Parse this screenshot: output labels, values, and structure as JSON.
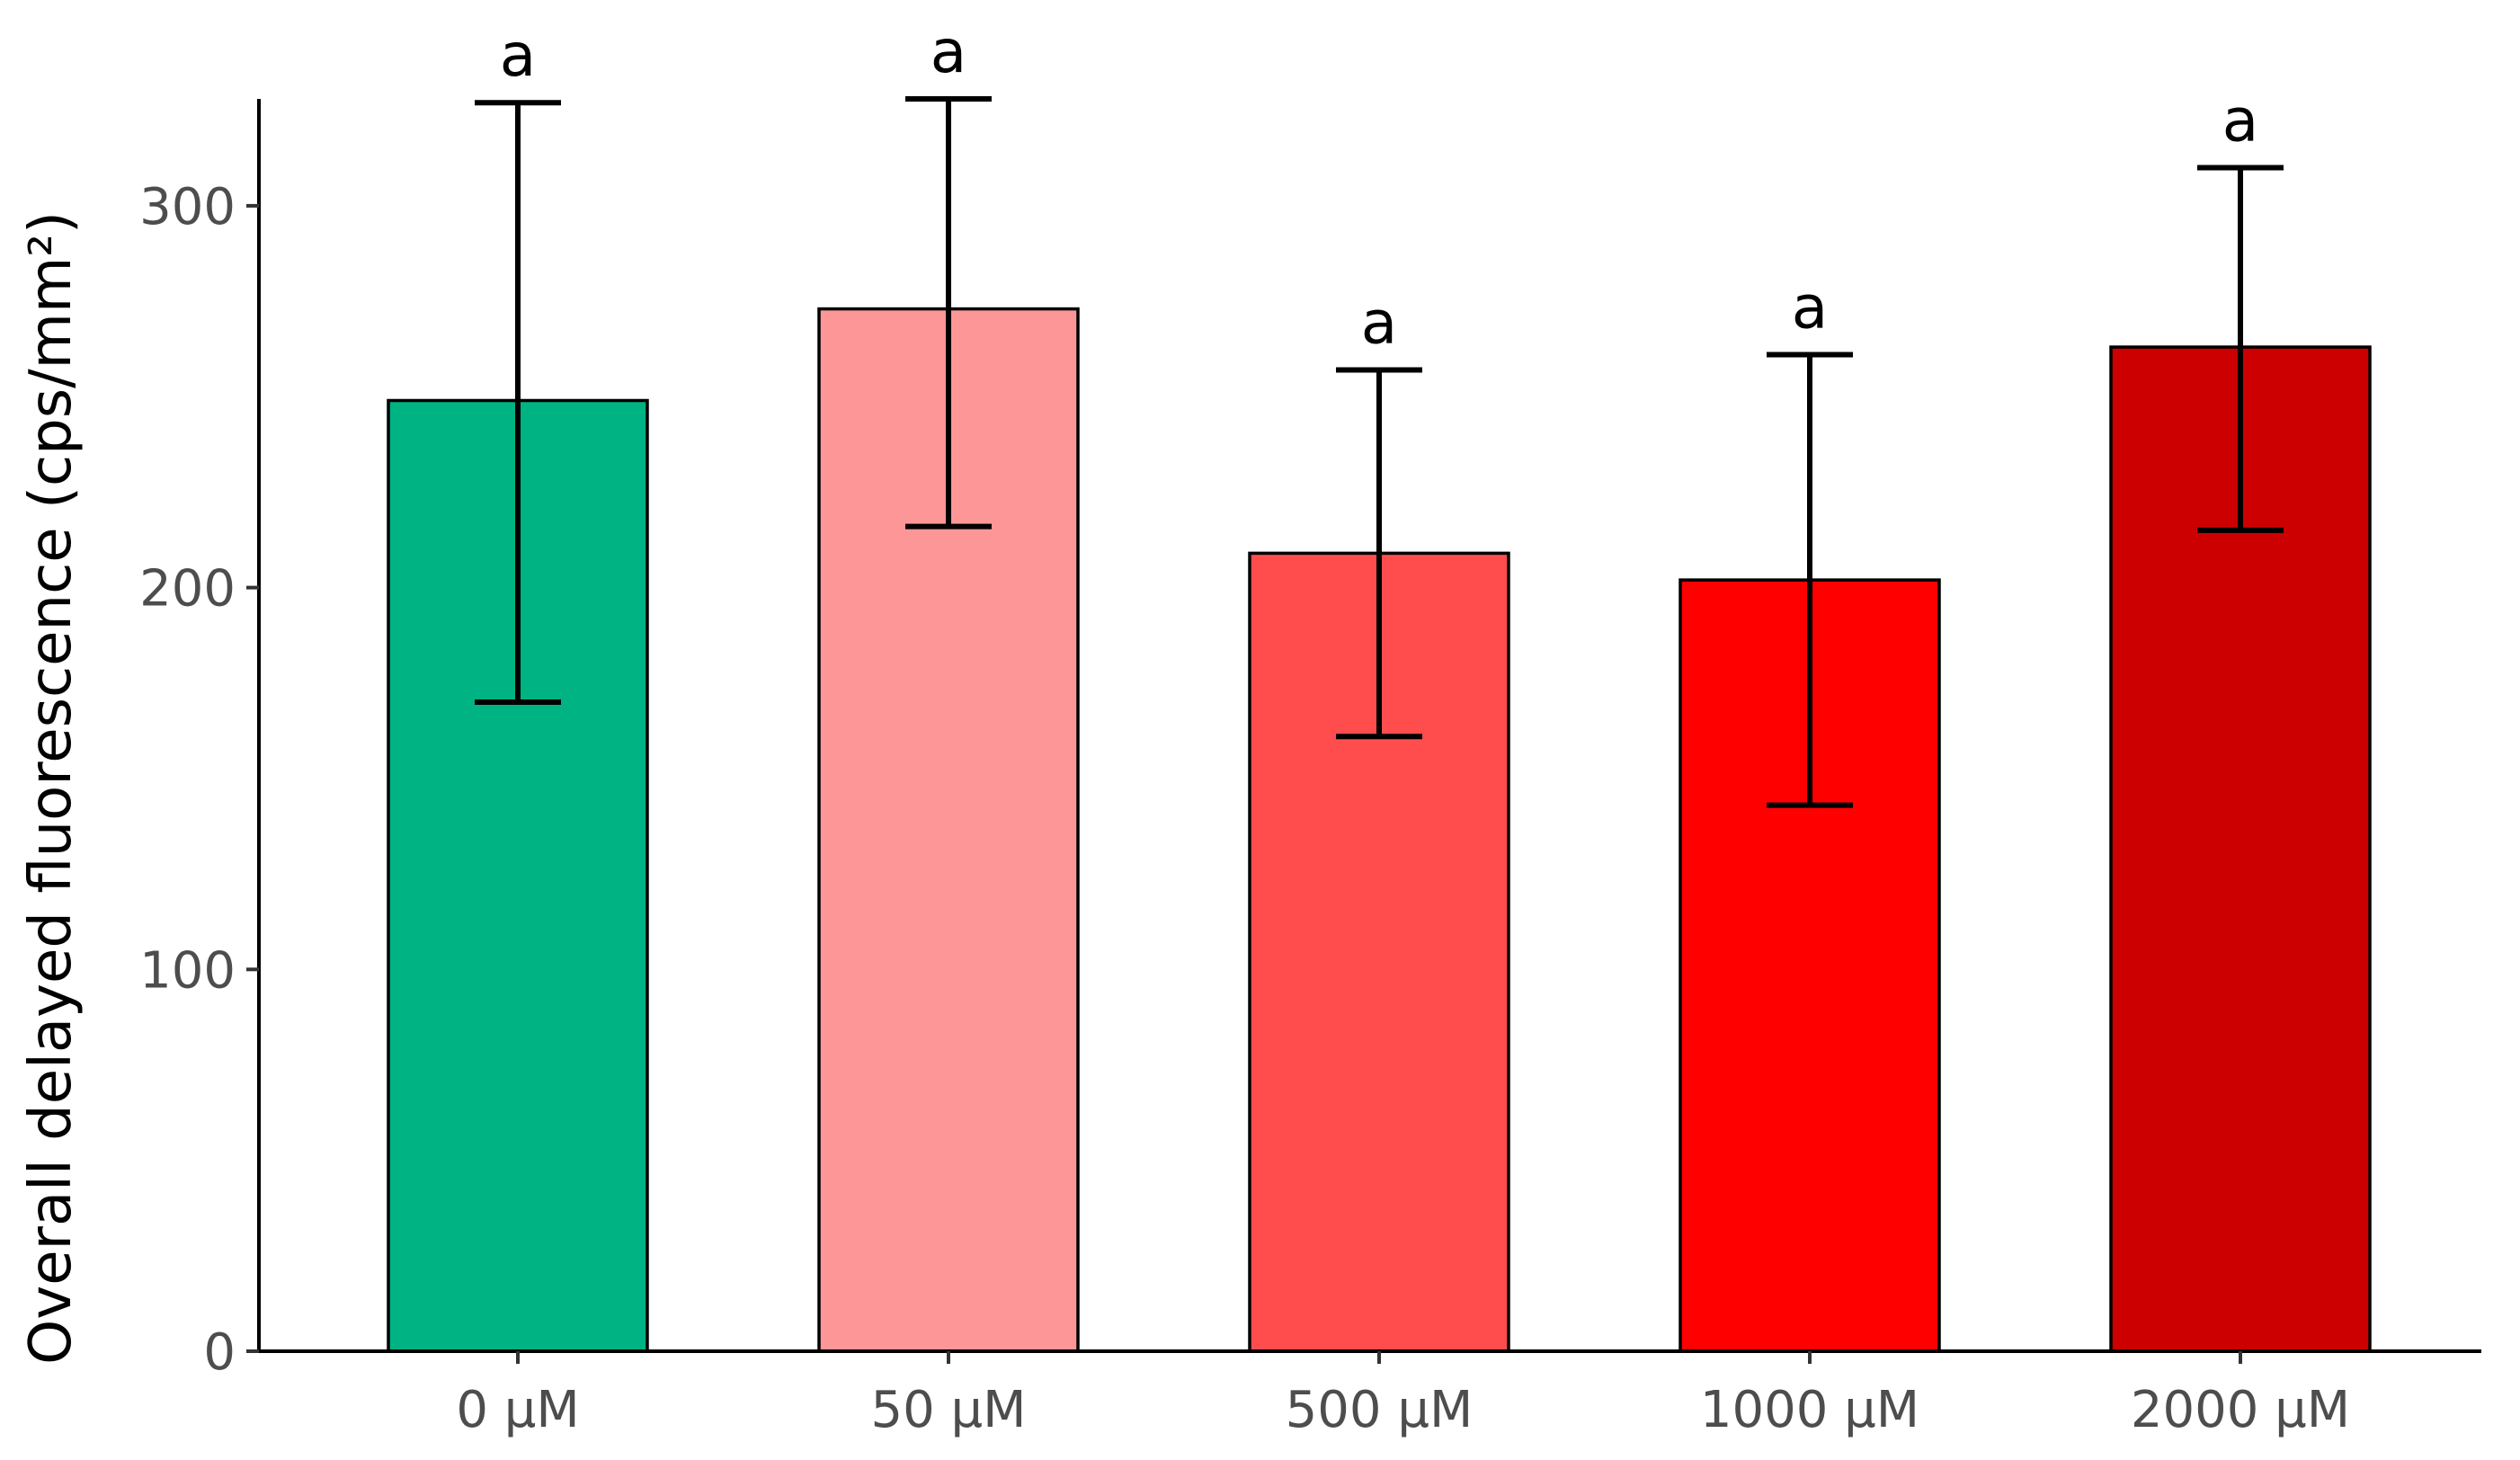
{
  "chart_data": {
    "type": "bar",
    "categories": [
      "0 μM",
      "50 μM",
      "500 μM",
      "1000 μM",
      "2000 μM"
    ],
    "values": [
      249,
      273,
      209,
      202,
      263
    ],
    "error_lower": [
      170,
      216,
      161,
      143,
      215
    ],
    "error_upper": [
      327,
      328,
      257,
      261,
      310
    ],
    "significance_labels": [
      "a",
      "a",
      "a",
      "a",
      "a"
    ],
    "colors": [
      "#00b383",
      "#fd9797",
      "#ff4d4d",
      "#ff0000",
      "#cc0000"
    ],
    "ylabel": "Overall delayed fluorescence (cps/mm²)",
    "xlabel": "",
    "ylim": [
      0,
      328
    ],
    "yticks": [
      0,
      100,
      200,
      300
    ],
    "grid": false
  }
}
